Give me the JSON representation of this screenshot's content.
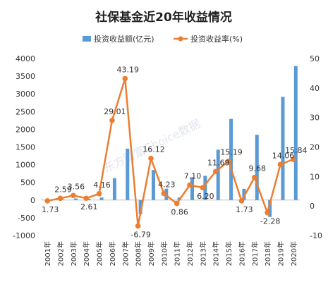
{
  "chart_data": {
    "type": "bar-line",
    "title": "社保基金近20年收益情况",
    "categories": [
      "2001年",
      "2002年",
      "2003年",
      "2004年",
      "2005年",
      "2006年",
      "2007年",
      "2008年",
      "2009年",
      "2010年",
      "2011年",
      "2012年",
      "2013年",
      "2014年",
      "2015年",
      "2016年",
      "2017年",
      "2018年",
      "2019年",
      "2020年"
    ],
    "series": [
      {
        "name": "投资收益额(亿元)",
        "type": "bar",
        "axis": "left",
        "color": "#5b9bd5",
        "values": [
          8,
          19,
          45,
          36,
          71,
          620,
          1453,
          -393,
          850,
          321,
          73,
          646,
          686,
          1424,
          2294,
          319,
          1846,
          -476,
          2917,
          3786
        ]
      },
      {
        "name": "投资收益率(%)",
        "type": "line",
        "axis": "right",
        "color": "#ed7d31",
        "values": [
          1.73,
          2.59,
          3.56,
          2.61,
          4.16,
          29.01,
          43.19,
          -6.79,
          16.12,
          4.23,
          0.86,
          7.1,
          6.2,
          11.69,
          15.19,
          1.73,
          9.68,
          -2.28,
          14.06,
          15.84
        ],
        "labels": [
          "1.73",
          "2.59",
          "3.56",
          "2.61",
          "4.16",
          "29.01",
          "43.19",
          "-6.79",
          "16.12",
          "4.23",
          "0.86",
          "7.10",
          "6.20",
          "11.69",
          "15.19",
          "1.73",
          "9.68",
          "-2.28",
          "14.06",
          "15.84"
        ]
      }
    ],
    "y_left": {
      "ylim": [
        -1000,
        4000
      ],
      "ticks": [
        "-1000",
        "-500",
        "0",
        "500",
        "1000",
        "1500",
        "2000",
        "2500",
        "3000",
        "3500",
        "4000"
      ]
    },
    "y_right": {
      "ylim": [
        -10,
        50
      ],
      "ticks": [
        "-10",
        "0",
        "10",
        "20",
        "30",
        "40",
        "50"
      ]
    },
    "legend_position": "top",
    "grid": false,
    "watermark": "东方财富Choice数据"
  }
}
